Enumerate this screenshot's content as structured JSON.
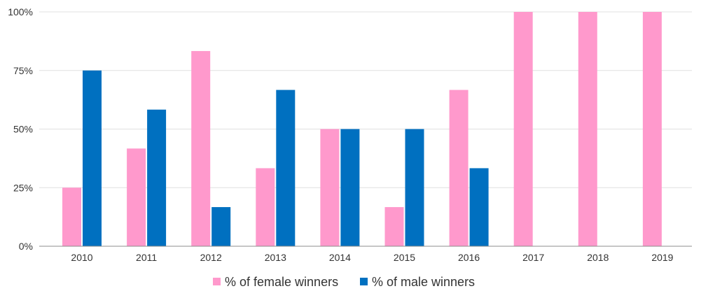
{
  "chart_data": {
    "type": "bar",
    "title": "",
    "xlabel": "",
    "ylabel": "",
    "categories": [
      "2010",
      "2011",
      "2012",
      "2013",
      "2014",
      "2015",
      "2016",
      "2017",
      "2018",
      "2019"
    ],
    "series": [
      {
        "name": "% of female winners",
        "color": "#FF99CC",
        "values": [
          25,
          41.7,
          83.3,
          33.3,
          50,
          16.7,
          66.7,
          100,
          100,
          100
        ]
      },
      {
        "name": "% of male winners",
        "color": "#0070C0",
        "values": [
          75,
          58.3,
          16.7,
          66.7,
          50,
          50,
          33.3,
          0,
          0,
          0
        ]
      }
    ],
    "ylim": [
      0,
      100
    ],
    "yticks": [
      0,
      25,
      50,
      75,
      100
    ],
    "ytick_labels": [
      "0%",
      "25%",
      "50%",
      "75%",
      "100%"
    ],
    "grid": true,
    "legend_position": "bottom-center"
  }
}
